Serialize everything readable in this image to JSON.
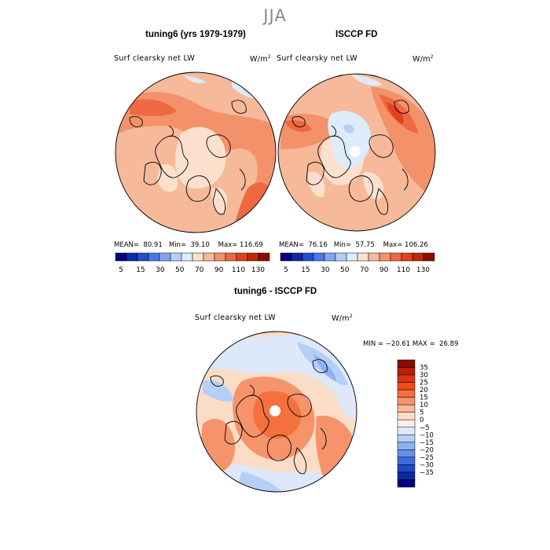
{
  "season": "JJA",
  "panels": {
    "model": {
      "title": "tuning6 (yrs 1979-1979)",
      "variable": "Surf clearsky net LW",
      "units": "W/m",
      "units_sup": "2",
      "mean_label": "MEAN=",
      "mean": "80.91",
      "min_label": "Min=",
      "min": "39.10",
      "max_label": "Max=",
      "max": "116.69"
    },
    "obs": {
      "title": "ISCCP FD",
      "variable": "Surf clearsky net LW",
      "units": "W/m",
      "units_sup": "2",
      "mean_label": "MEAN=",
      "mean": "76.16",
      "min_label": "Min=",
      "min": "57.75",
      "max_label": "Max=",
      "max": "106.26"
    },
    "diff": {
      "title": "tuning6 - ISCCP FD",
      "variable": "Surf clearsky net LW",
      "units": "W/m",
      "units_sup": "2",
      "min_label": "MIN =",
      "min": "−20.61",
      "max_label": "MAX =",
      "max": "26.89"
    }
  },
  "colorbar_top": {
    "colors": [
      "#000080",
      "#0a2ba3",
      "#1f4fd1",
      "#4a78e8",
      "#7fa5f0",
      "#b4cff6",
      "#deebfa",
      "#fbe1cd",
      "#f6b99a",
      "#f3916a",
      "#ee6841",
      "#e4411b",
      "#c0250c",
      "#8a0d02"
    ],
    "labels": [
      "5",
      "15",
      "30",
      "50",
      "70",
      "90",
      "110",
      "130"
    ]
  },
  "colorbar_diff": {
    "colors": [
      "#8a0d02",
      "#b61f08",
      "#d9350f",
      "#ee4a1c",
      "#f4703d",
      "#f6936a",
      "#f8b897",
      "#fbdcc7",
      "#fdf1e7",
      "#dde9fb",
      "#b6cff7",
      "#8cb1f0",
      "#6490e6",
      "#3d6cdb",
      "#1d48c6",
      "#0a2a9c",
      "#000080"
    ],
    "labels": [
      "35",
      "30",
      "25",
      "20",
      "15",
      "10",
      "5",
      "0",
      "−5",
      "−10",
      "−15",
      "−20",
      "−25",
      "−30",
      "−35"
    ]
  },
  "map_colors": {
    "base_top": "#f6b99a",
    "base_diff": "#fbdcc7",
    "warm": "#f3916a",
    "hot": "#ee6841",
    "hotter": "#e4411b",
    "pale": "#fbe1cd",
    "cool": "#deebfa",
    "cold": "#b4cff6",
    "colder": "#7fa5f0",
    "diff_warm": "#f6936a",
    "diff_hot": "#f4703d",
    "diff_cool": "#dde9fb",
    "diff_cold": "#b6cff7",
    "diff_colder": "#8cb1f0"
  }
}
